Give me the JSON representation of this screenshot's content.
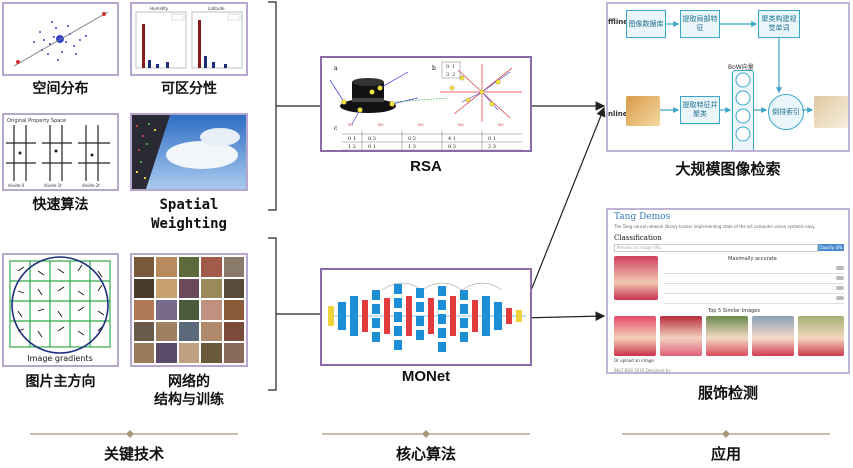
{
  "key_tech": {
    "spatial": "空间分布",
    "separability": "可区分性",
    "fast_algo": "快速算法",
    "spatial_weighting_1": "Spatial",
    "spatial_weighting_2": "Weighting",
    "main_direction": "图片主方向",
    "network_1": "网络的",
    "network_2": "结构与训练",
    "image_gradients": "Image gradients",
    "grid_title": "Original Property Space",
    "grid_labels": [
      "divide-0",
      "divide-1t",
      "divide-2t"
    ],
    "hist_titles": [
      "Humidity",
      "Latitude"
    ]
  },
  "algorithms": {
    "rsa": "RSA",
    "monet": "MONet",
    "rsa_panel_labels": [
      "a",
      "b",
      "c"
    ]
  },
  "apps": {
    "retrieval": "大规模图像检索",
    "clothing": "服饰检测",
    "offline": "ffline",
    "online": "nline",
    "bow": "BoW向量",
    "boxes": {
      "db": "图像数据库",
      "extract": "提取局部特征",
      "cluster": "聚类构建视觉单词",
      "extract_cluster": "提取特征并聚类",
      "index": "倒排索引"
    },
    "demo_title": "Tang Demos",
    "demo_sub": "The Tang neural network library trainer implementing state of the art computer vision systems easy.",
    "classification": "Classification",
    "classify_btn": "Classify URL",
    "provide_url": "Provide an image URL",
    "maximally": "Maximally accurate",
    "top_similar": "Top 5 Similar Images",
    "footer": "BKLT·BUS 2016 Designed by",
    "upload": "Or upload an image:"
  },
  "sections": {
    "key": "关键技术",
    "core": "核心算法",
    "apply": "应用"
  },
  "colors": {
    "thumb_border": "#b7a7cf",
    "algo_border": "#8b6aa8",
    "flow_box": "#3aa6c8",
    "net_blue": "#1c8fd6",
    "net_red": "#e23b3b",
    "net_yellow": "#f0d23a"
  }
}
